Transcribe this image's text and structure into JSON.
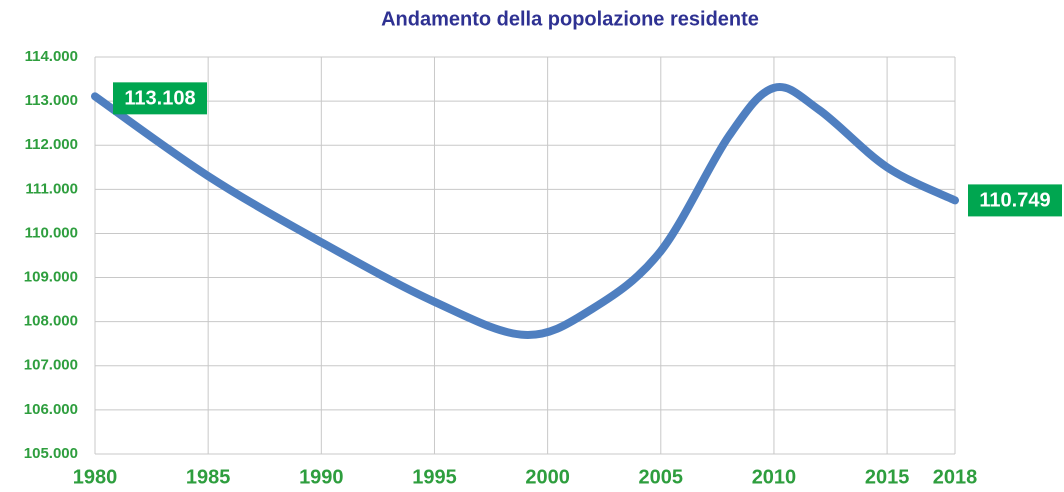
{
  "chart_data": {
    "type": "line",
    "title": "Andamento della popolazione residente",
    "x": [
      1980,
      1985,
      1990,
      1995,
      1999,
      2002,
      2005,
      2008,
      2010,
      2012,
      2015,
      2018
    ],
    "series": [
      {
        "name": "Popolazione residente",
        "color": "#4f7fc0",
        "values": [
          113108,
          111300,
          109800,
          108450,
          107700,
          108300,
          109600,
          112200,
          113300,
          112800,
          111500,
          110749
        ],
        "value_labels": [
          "113.108",
          null,
          null,
          null,
          null,
          null,
          null,
          null,
          null,
          null,
          null,
          "110.749"
        ]
      }
    ],
    "xlim": [
      1980,
      2018
    ],
    "xticks": [
      1980,
      1985,
      1990,
      1995,
      2000,
      2005,
      2010,
      2015,
      2018
    ],
    "ylim": [
      105000,
      114000
    ],
    "yticks": [
      {
        "value": 105000,
        "label": "105.000"
      },
      {
        "value": 106000,
        "label": "106.000"
      },
      {
        "value": 107000,
        "label": "107.000"
      },
      {
        "value": 108000,
        "label": "108.000"
      },
      {
        "value": 109000,
        "label": "109.000"
      },
      {
        "value": 110000,
        "label": "110.000"
      },
      {
        "value": 111000,
        "label": "111.000"
      },
      {
        "value": 112000,
        "label": "112.000"
      },
      {
        "value": 113000,
        "label": "113.000"
      },
      {
        "value": 114000,
        "label": "114.000"
      }
    ],
    "grid": true
  }
}
